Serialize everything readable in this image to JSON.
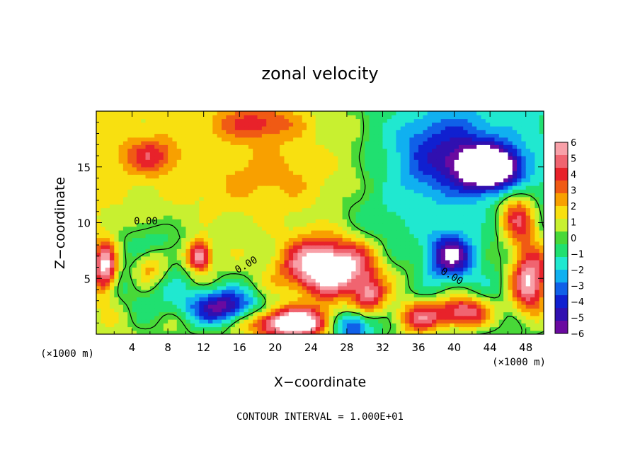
{
  "chart_data": {
    "type": "heatmap",
    "title": "zonal velocity",
    "xlabel": "X−coordinate",
    "ylabel": "Z−coordinate",
    "x_unit_label": "(×1000 m)",
    "y_unit_label": "(×1000 m)",
    "xlim": [
      0,
      50
    ],
    "ylim": [
      0,
      20
    ],
    "x_ticks": [
      "4",
      "8",
      "12",
      "16",
      "20",
      "24",
      "28",
      "32",
      "36",
      "40",
      "44",
      "48"
    ],
    "y_ticks": [
      "5",
      "10",
      "15"
    ],
    "colorbar": {
      "range": [
        -6,
        6
      ],
      "labels": [
        "6",
        "5",
        "4",
        "3",
        "2",
        "1",
        "0",
        "−1",
        "−2",
        "−3",
        "−4",
        "−5",
        "−6"
      ],
      "colors": [
        "#f8a0a8",
        "#f06470",
        "#e8222a",
        "#f05a14",
        "#f8a000",
        "#f8e010",
        "#c8f030",
        "#48d838",
        "#20e070",
        "#20e8d0",
        "#10b0f0",
        "#1060e8",
        "#1020d0",
        "#3010b0",
        "#6a0aa0"
      ]
    },
    "contour_labels": [
      "0.00",
      "0.00",
      "0.00"
    ],
    "footer": "CONTOUR INTERVAL = 1.000E+01",
    "features": [
      {
        "kind": "jet",
        "x": 26,
        "z": 6.0,
        "peak": 8.5,
        "sx": 5.0,
        "sz": 2.6
      },
      {
        "kind": "jet",
        "x": 44,
        "z": 15.0,
        "peak": -8.5,
        "sx": 3.2,
        "sz": 1.8
      },
      {
        "kind": "jet",
        "x": 6,
        "z": 6.0,
        "peak": 7.5,
        "sx": 2.3,
        "sz": 2.0
      },
      {
        "kind": "jet",
        "x": 6,
        "z": 6.0,
        "peak": -6.0,
        "sx": 3.3,
        "sz": 3.0
      },
      {
        "kind": "jet",
        "x": 11.5,
        "z": 7.0,
        "peak": 6.5,
        "sx": 1.3,
        "sz": 1.3
      },
      {
        "kind": "jet",
        "x": 14,
        "z": 2.5,
        "peak": -6.0,
        "sx": 4.0,
        "sz": 1.6
      },
      {
        "kind": "jet",
        "x": 22,
        "z": 1.0,
        "peak": 8.0,
        "sx": 5.0,
        "sz": 1.4
      },
      {
        "kind": "jet",
        "x": 1,
        "z": 6.0,
        "peak": 6.0,
        "sx": 1.2,
        "sz": 2.2
      },
      {
        "kind": "jet",
        "x": 48.5,
        "z": 5.0,
        "peak": 7.0,
        "sx": 2.2,
        "sz": 3.5
      },
      {
        "kind": "jet",
        "x": 47,
        "z": 10.5,
        "peak": 5.0,
        "sx": 2.0,
        "sz": 2.2
      },
      {
        "kind": "jet",
        "x": 39.5,
        "z": 7.0,
        "peak": -5.5,
        "sx": 2.6,
        "sz": 2.0
      },
      {
        "kind": "jet",
        "x": 41,
        "z": 2.0,
        "peak": 6.0,
        "sx": 3.0,
        "sz": 1.4
      },
      {
        "kind": "jet",
        "x": 36,
        "z": 1.5,
        "peak": 4.5,
        "sx": 2.5,
        "sz": 1.5
      },
      {
        "kind": "jet",
        "x": 30.5,
        "z": 3.5,
        "peak": 4.5,
        "sx": 1.8,
        "sz": 1.5
      },
      {
        "kind": "jet",
        "x": 28.5,
        "z": 0.8,
        "peak": -5.0,
        "sx": 2.5,
        "sz": 1.2
      },
      {
        "kind": "jet",
        "x": 6,
        "z": 16.0,
        "peak": 3.0,
        "sx": 3.0,
        "sz": 1.6
      },
      {
        "kind": "jet",
        "x": 18,
        "z": 19.0,
        "peak": 3.0,
        "sx": 5.0,
        "sz": 1.5
      },
      {
        "kind": "jet",
        "x": 39,
        "z": 16.0,
        "peak": -4.0,
        "sx": 6.0,
        "sz": 4.0
      },
      {
        "kind": "jet",
        "x": 20,
        "z": 14.0,
        "peak": 1.8,
        "sx": 9.0,
        "sz": 4.0
      },
      {
        "kind": "jet",
        "x": 32,
        "z": 10.0,
        "peak": -1.0,
        "sx": 5.0,
        "sz": 3.0
      }
    ]
  }
}
